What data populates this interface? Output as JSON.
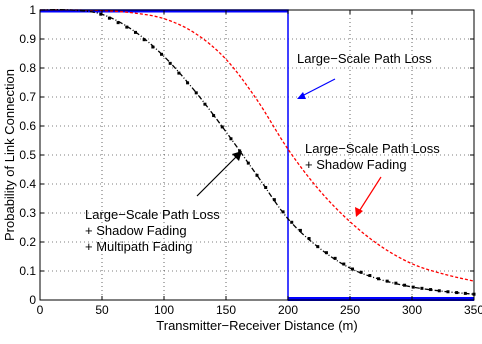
{
  "chart_data": {
    "type": "line",
    "xlabel": "Transmitter−Receiver Distance (m)",
    "ylabel": "Probability of Link Connection",
    "xlim": [
      0,
      350
    ],
    "ylim": [
      0,
      1
    ],
    "grid": true,
    "x_ticks": [
      "0",
      "50",
      "100",
      "150",
      "200",
      "250",
      "300",
      "350"
    ],
    "y_ticks": [
      "0",
      "0.1",
      "0.2",
      "0.3",
      "0.4",
      "0.5",
      "0.6",
      "0.7",
      "0.8",
      "0.9",
      "1"
    ],
    "series": [
      {
        "color": "#0000ff",
        "style": "solid",
        "x": [
          0,
          200,
          200,
          350
        ],
        "y": [
          1,
          1,
          0,
          0
        ]
      },
      {
        "color": "#ff0000",
        "style": "dashed",
        "x": [
          0,
          25,
          50,
          75,
          100,
          125,
          150,
          175,
          200,
          225,
          250,
          275,
          300,
          325,
          350
        ],
        "y": [
          1.0,
          1.0,
          0.998,
          0.99,
          0.97,
          0.92,
          0.83,
          0.69,
          0.52,
          0.38,
          0.27,
          0.185,
          0.125,
          0.09,
          0.065
        ]
      },
      {
        "color": "#000000",
        "style": "dash-dot-marker",
        "x": [
          0,
          25,
          50,
          75,
          100,
          125,
          150,
          175,
          200,
          225,
          250,
          275,
          300,
          325,
          350
        ],
        "y": [
          1.0,
          1.0,
          0.985,
          0.93,
          0.84,
          0.72,
          0.58,
          0.43,
          0.28,
          0.18,
          0.11,
          0.07,
          0.045,
          0.03,
          0.02
        ]
      }
    ],
    "annotations": [
      {
        "lines": [
          "Large−Scale Path Loss"
        ],
        "arrow_color": "#0000ff"
      },
      {
        "lines": [
          "Large−Scale Path Loss",
          "+ Shadow Fading"
        ],
        "arrow_color": "#ff0000"
      },
      {
        "lines": [
          "Large−Scale Path Loss",
          "+ Shadow Fading",
          "+ Multipath Fading"
        ],
        "arrow_color": "#000000"
      }
    ]
  }
}
